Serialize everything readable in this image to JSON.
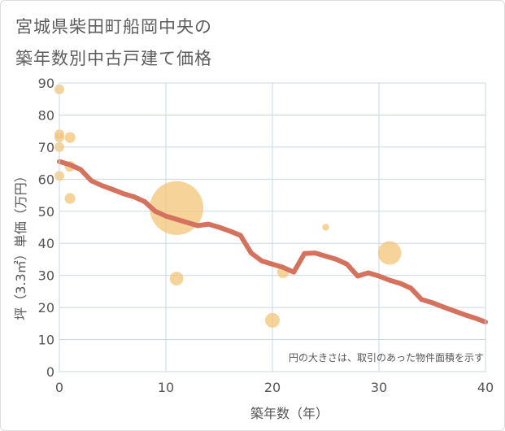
{
  "header": {
    "title_line1": "宮城県柴田町船岡中央の",
    "title_line2": "築年数別中古戸建て価格"
  },
  "colors": {
    "bubble": "#f3c272",
    "trend": "#d4725e",
    "grid": "#c9d8e6",
    "plot_border": "#c9d8e6"
  },
  "chart_data": {
    "type": "scatter",
    "title": "宮城県柴田町船岡中央の築年数別中古戸建て価格",
    "xlabel": "築年数（年）",
    "ylabel": "坪（3.3㎡）単価（万円）",
    "xlim": [
      0,
      40
    ],
    "ylim": [
      0,
      90
    ],
    "xticks": [
      0,
      10,
      20,
      30,
      40
    ],
    "yticks": [
      0,
      10,
      20,
      30,
      40,
      50,
      60,
      70,
      80,
      90
    ],
    "note": "円の大きさは、取引のあった物件面積を示す",
    "points": [
      {
        "x": 0,
        "y": 88,
        "size": 1
      },
      {
        "x": 0,
        "y": 74,
        "size": 1
      },
      {
        "x": 0,
        "y": 73,
        "size": 1
      },
      {
        "x": 0,
        "y": 70,
        "size": 1
      },
      {
        "x": 0,
        "y": 61,
        "size": 1
      },
      {
        "x": 1,
        "y": 73,
        "size": 1.1
      },
      {
        "x": 1,
        "y": 64,
        "size": 1.1
      },
      {
        "x": 1,
        "y": 54,
        "size": 1.1
      },
      {
        "x": 11,
        "y": 51,
        "size": 5.5
      },
      {
        "x": 11,
        "y": 29,
        "size": 1.4
      },
      {
        "x": 20,
        "y": 16,
        "size": 1.5
      },
      {
        "x": 21,
        "y": 31,
        "size": 1.2
      },
      {
        "x": 25,
        "y": 45,
        "size": 0.7
      },
      {
        "x": 31,
        "y": 37,
        "size": 2.4
      }
    ],
    "trend": {
      "x": [
        0,
        1,
        2,
        3,
        4,
        5,
        6,
        7,
        8,
        9,
        10,
        11,
        12,
        13,
        14,
        15,
        16,
        17,
        18,
        19,
        20,
        21,
        22,
        23,
        24,
        25,
        26,
        27,
        28,
        29,
        30,
        31,
        32,
        33,
        34,
        35,
        36,
        37,
        38,
        39,
        40
      ],
      "y": [
        65.5,
        64.5,
        63,
        59.5,
        58,
        56.8,
        55.5,
        54.5,
        53,
        50,
        48.5,
        47.5,
        46.5,
        45.5,
        46,
        45,
        43.8,
        42.5,
        37,
        34.5,
        33.5,
        32.5,
        31,
        36.8,
        37,
        36,
        35,
        33.5,
        29.8,
        30.8,
        29.8,
        28.5,
        27.5,
        26,
        22.5,
        21.5,
        20.2,
        19,
        17.8,
        16.7,
        15.5
      ]
    }
  }
}
